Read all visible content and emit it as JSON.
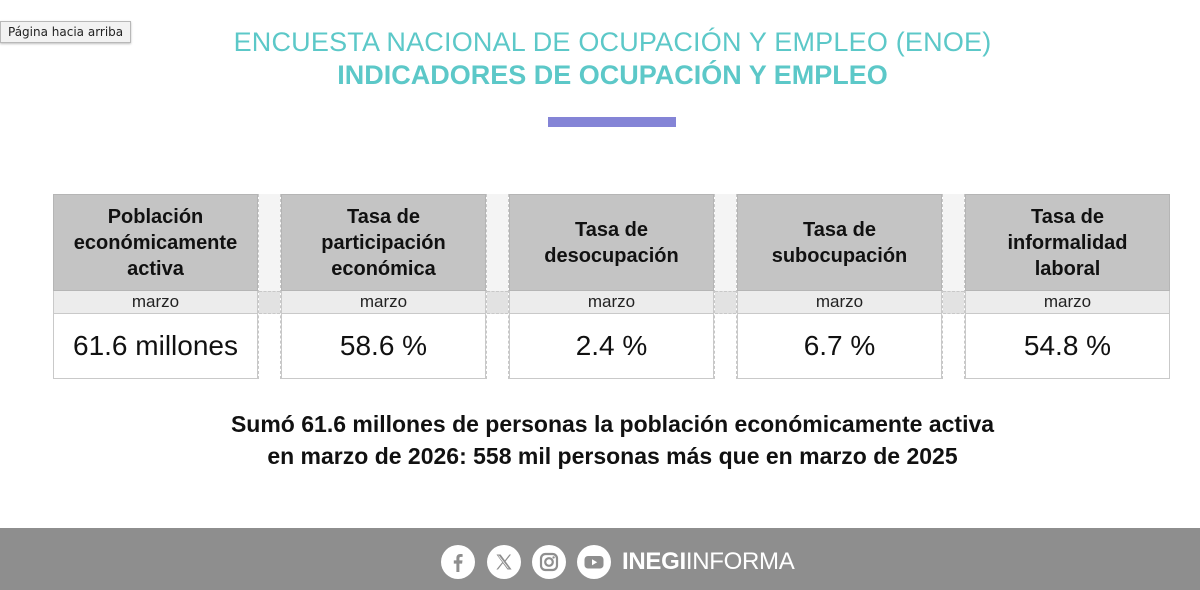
{
  "tooltip": "Página hacia arriba",
  "header": {
    "title": "ENCUESTA NACIONAL DE OCUPACIÓN Y EMPLEO (ENOE)",
    "subtitle": "INDICADORES DE OCUPACIÓN Y EMPLEO"
  },
  "indicators": [
    {
      "label": "Población\neconómicamente\nactiva",
      "period": "marzo",
      "value": "61.6 millones"
    },
    {
      "label": "Tasa de\nparticipación\neconómica",
      "period": "marzo",
      "value": "58.6 %"
    },
    {
      "label": "Tasa de\ndesocupación",
      "period": "marzo",
      "value": "2.4 %"
    },
    {
      "label": "Tasa de\nsubocupación",
      "period": "marzo",
      "value": "6.7 %"
    },
    {
      "label": "Tasa de\ninformalidad\nlaboral",
      "period": "marzo",
      "value": "54.8 %"
    }
  ],
  "summary": {
    "line1": "Sumó 61.6 millones de personas la población económicamente activa",
    "line2": "en marzo de 2026: 558 mil personas más que en marzo de 2025"
  },
  "footer": {
    "icons": [
      "facebook-icon",
      "x-icon",
      "instagram-icon",
      "youtube-icon"
    ],
    "brand_bold": "INEGI",
    "brand_rest": "INFORMA"
  },
  "colors": {
    "title": "#5cc8c8",
    "accent_bar": "#8484d6",
    "table_header": "#c4c4c4",
    "footer_bg": "#8e8e8e"
  }
}
